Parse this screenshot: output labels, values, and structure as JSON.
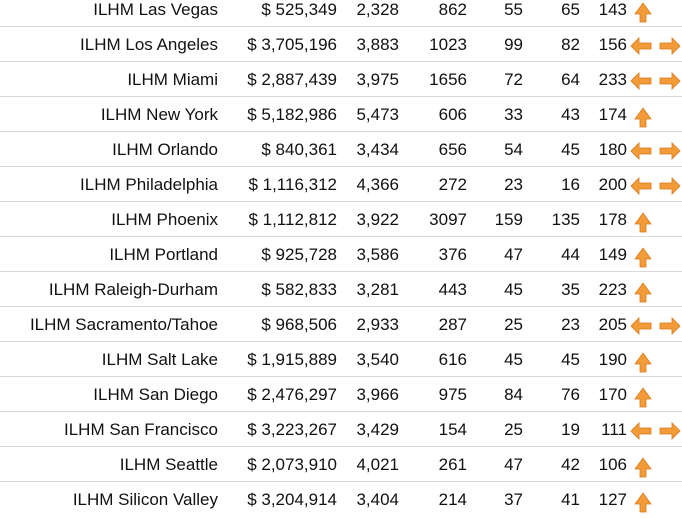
{
  "colors": {
    "arrow_fill": "#f29b38",
    "arrow_stroke": "#d77a1b",
    "row_divider": "#d9d9d9"
  },
  "rows": [
    {
      "name": "ILHM Las Vegas",
      "revenue": "$ 525,349",
      "v1": "2,328",
      "v2": "862",
      "v3": "55",
      "v4": "65",
      "v5": "143",
      "icon": "arrow-up-icon"
    },
    {
      "name": "ILHM Los Angeles",
      "revenue": "$ 3,705,196",
      "v1": "3,883",
      "v2": "1023",
      "v3": "99",
      "v4": "82",
      "v5": "156",
      "icon": "arrow-left-right-icon"
    },
    {
      "name": "ILHM Miami",
      "revenue": "$ 2,887,439",
      "v1": "3,975",
      "v2": "1656",
      "v3": "72",
      "v4": "64",
      "v5": "233",
      "icon": "arrow-left-right-icon"
    },
    {
      "name": "ILHM New York",
      "revenue": "$ 5,182,986",
      "v1": "5,473",
      "v2": "606",
      "v3": "33",
      "v4": "43",
      "v5": "174",
      "icon": "arrow-up-icon"
    },
    {
      "name": "ILHM Orlando",
      "revenue": "$ 840,361",
      "v1": "3,434",
      "v2": "656",
      "v3": "54",
      "v4": "45",
      "v5": "180",
      "icon": "arrow-left-right-icon"
    },
    {
      "name": "ILHM Philadelphia",
      "revenue": "$ 1,116,312",
      "v1": "4,366",
      "v2": "272",
      "v3": "23",
      "v4": "16",
      "v5": "200",
      "icon": "arrow-left-right-icon"
    },
    {
      "name": "ILHM Phoenix",
      "revenue": "$ 1,112,812",
      "v1": "3,922",
      "v2": "3097",
      "v3": "159",
      "v4": "135",
      "v5": "178",
      "icon": "arrow-up-icon"
    },
    {
      "name": "ILHM Portland",
      "revenue": "$ 925,728",
      "v1": "3,586",
      "v2": "376",
      "v3": "47",
      "v4": "44",
      "v5": "149",
      "icon": "arrow-up-icon"
    },
    {
      "name": "ILHM Raleigh-Durham",
      "revenue": "$ 582,833",
      "v1": "3,281",
      "v2": "443",
      "v3": "45",
      "v4": "35",
      "v5": "223",
      "icon": "arrow-up-icon"
    },
    {
      "name": "ILHM Sacramento/Tahoe",
      "revenue": "$ 968,506",
      "v1": "2,933",
      "v2": "287",
      "v3": "25",
      "v4": "23",
      "v5": "205",
      "icon": "arrow-left-right-icon"
    },
    {
      "name": "ILHM Salt Lake",
      "revenue": "$ 1,915,889",
      "v1": "3,540",
      "v2": "616",
      "v3": "45",
      "v4": "45",
      "v5": "190",
      "icon": "arrow-up-icon"
    },
    {
      "name": "ILHM San Diego",
      "revenue": "$ 2,476,297",
      "v1": "3,966",
      "v2": "975",
      "v3": "84",
      "v4": "76",
      "v5": "170",
      "icon": "arrow-up-icon"
    },
    {
      "name": "ILHM San Francisco",
      "revenue": "$ 3,223,267",
      "v1": "3,429",
      "v2": "154",
      "v3": "25",
      "v4": "19",
      "v5": "111",
      "icon": "arrow-left-right-icon"
    },
    {
      "name": "ILHM Seattle",
      "revenue": "$ 2,073,910",
      "v1": "4,021",
      "v2": "261",
      "v3": "47",
      "v4": "42",
      "v5": "106",
      "icon": "arrow-up-icon"
    },
    {
      "name": "ILHM Silicon Valley",
      "revenue": "$ 3,204,914",
      "v1": "3,404",
      "v2": "214",
      "v3": "37",
      "v4": "41",
      "v5": "127",
      "icon": "arrow-up-icon"
    }
  ]
}
